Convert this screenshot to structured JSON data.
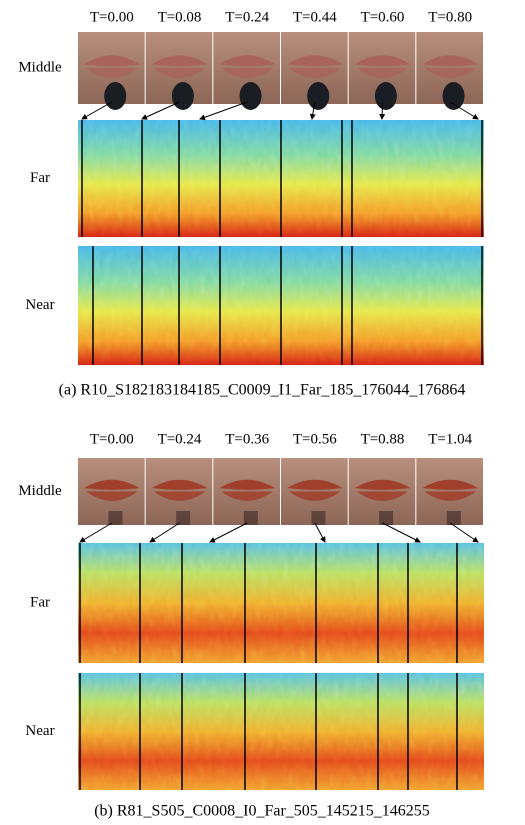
{
  "panels": [
    {
      "time_labels": [
        "T=0.00",
        "T=0.08",
        "T=0.24",
        "T=0.44",
        "T=0.60",
        "T=0.80"
      ],
      "row_labels": [
        "Middle",
        "Far",
        "Near"
      ],
      "caption": "(a) R10_S182183184185_C0009_I1_Far_185_176044_176864"
    },
    {
      "time_labels": [
        "T=0.00",
        "T=0.24",
        "T=0.36",
        "T=0.56",
        "T=0.88",
        "T=1.04"
      ],
      "row_labels": [
        "Middle",
        "Far",
        "Near"
      ],
      "caption": "(b) R81_S505_C0008_I0_Far_505_145215_146255"
    }
  ]
}
